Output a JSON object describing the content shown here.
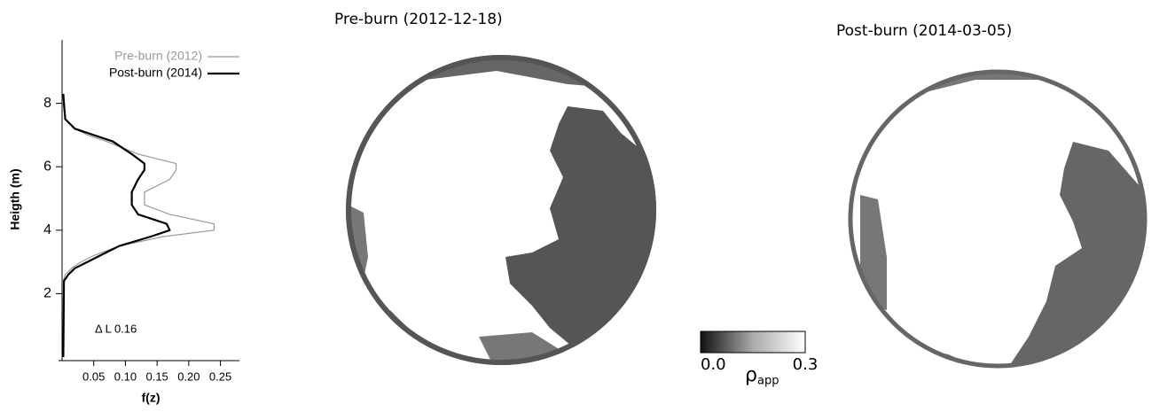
{
  "chart_data": {
    "type": "line",
    "xlabel": "f(z)",
    "ylabel": "Heigth (m)",
    "annotation": "Δ L 0.16",
    "xlim": [
      0,
      0.28
    ],
    "ylim": [
      0,
      10
    ],
    "xticks": [
      0.05,
      {
        "value": 0.1,
        "label": "0.10"
      },
      0.15,
      {
        "value": 0.2,
        "label": "0.20"
      },
      0.25
    ],
    "yticks": [
      2,
      4,
      6,
      8
    ],
    "legend": "top-right",
    "y": [
      0,
      2.4,
      2.6,
      2.8,
      3.0,
      3.2,
      3.5,
      3.8,
      4.0,
      4.2,
      4.5,
      4.8,
      5.2,
      5.6,
      5.9,
      6.1,
      6.4,
      6.8,
      7.0,
      7.2,
      7.5,
      8.0,
      8.3
    ],
    "series": [
      {
        "name": "Pre-burn (2012)",
        "color": "#999999",
        "width": 1.2,
        "values": [
          null,
          0.002,
          0.005,
          0.015,
          0.03,
          0.05,
          0.09,
          0.16,
          0.24,
          0.24,
          0.17,
          0.13,
          0.13,
          0.17,
          0.18,
          0.18,
          0.12,
          0.07,
          0.04,
          0.02,
          0.005,
          0.002,
          null
        ]
      },
      {
        "name": "Post-burn (2014)",
        "color": "#000000",
        "width": 2.2,
        "values": [
          0.002,
          0.003,
          0.01,
          0.02,
          0.04,
          0.06,
          0.09,
          0.14,
          0.17,
          0.165,
          0.12,
          0.11,
          0.11,
          0.12,
          0.13,
          0.13,
          0.11,
          0.08,
          0.05,
          0.02,
          0.005,
          0.003,
          0.002
        ]
      }
    ]
  },
  "panels": [
    {
      "title": "Pre-burn (2012-12-18)"
    },
    {
      "title": "Post-burn (2014-03-05)"
    }
  ],
  "colorbar": {
    "symbol": "ρ",
    "subscript": "app",
    "ticks": [
      {
        "value": 0,
        "label": "0.0"
      },
      {
        "value": 0.3,
        "label": "0.3"
      }
    ]
  }
}
